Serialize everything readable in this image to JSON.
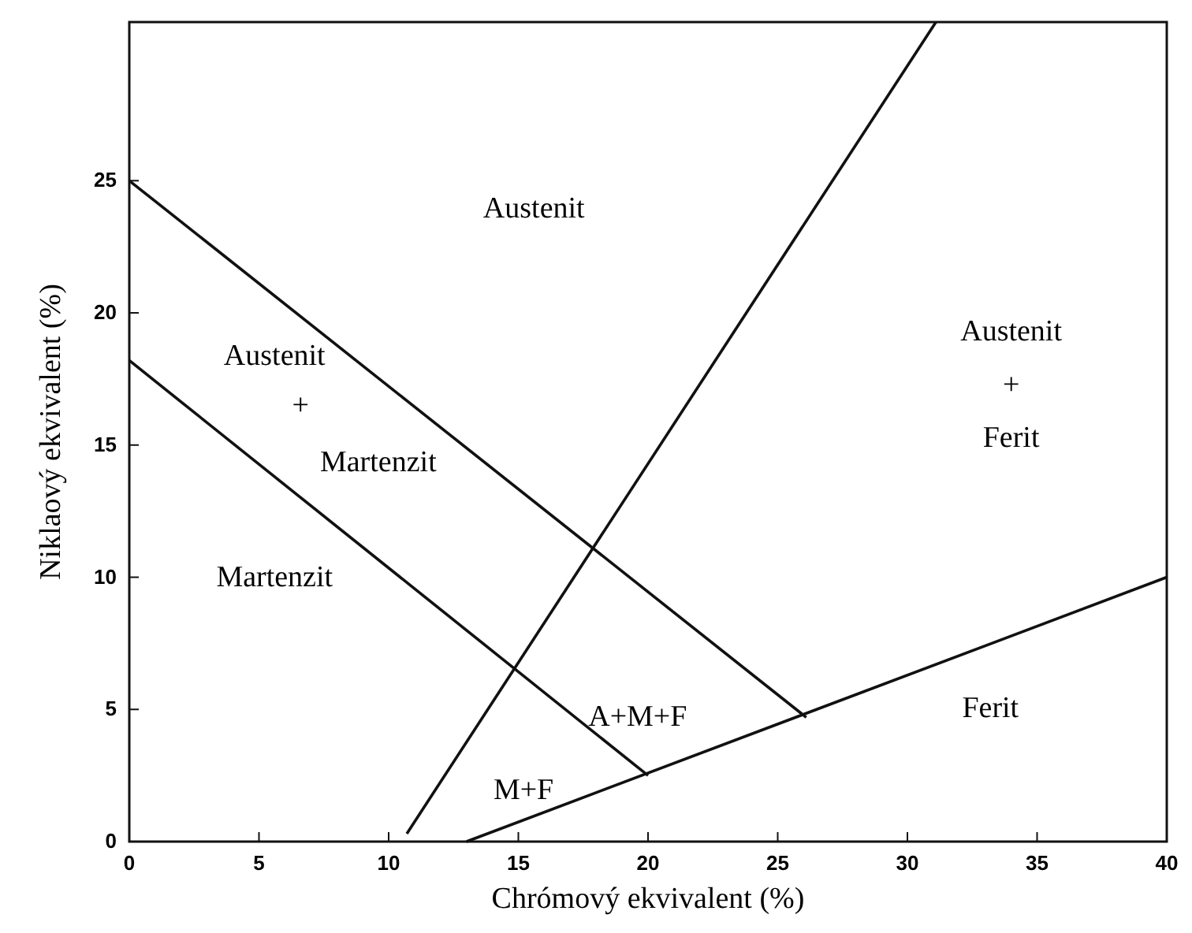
{
  "chart_data": {
    "type": "line",
    "xlabel": "Chrómový ekvivalent (%)",
    "ylabel": "Niklaový ekvivalent (%)",
    "xlim": [
      0,
      40
    ],
    "ylim": [
      0,
      31
    ],
    "xticks": [
      0,
      5,
      10,
      15,
      20,
      25,
      30,
      35,
      40
    ],
    "yticks": [
      0,
      5,
      10,
      15,
      20,
      25
    ],
    "grid": false,
    "marker": "none",
    "line_style": "solid",
    "series": [
      {
        "color": "#111111",
        "x": [
          0,
          26.1
        ],
        "values": [
          25,
          4.7
        ]
      },
      {
        "color": "#111111",
        "x": [
          0,
          20
        ],
        "values": [
          18.2,
          2.5
        ]
      },
      {
        "color": "#111111",
        "x": [
          10.7,
          31.1
        ],
        "values": [
          0.3,
          31
        ]
      },
      {
        "color": "#111111",
        "x": [
          13,
          40
        ],
        "values": [
          0,
          10
        ]
      }
    ],
    "annotations": [
      "Austenit",
      "Austenit",
      "+",
      "Martenzit",
      "Martenzit",
      "A+M+F",
      "M+F",
      "Austenit",
      "+",
      "Ferit",
      "Ferit"
    ]
  }
}
